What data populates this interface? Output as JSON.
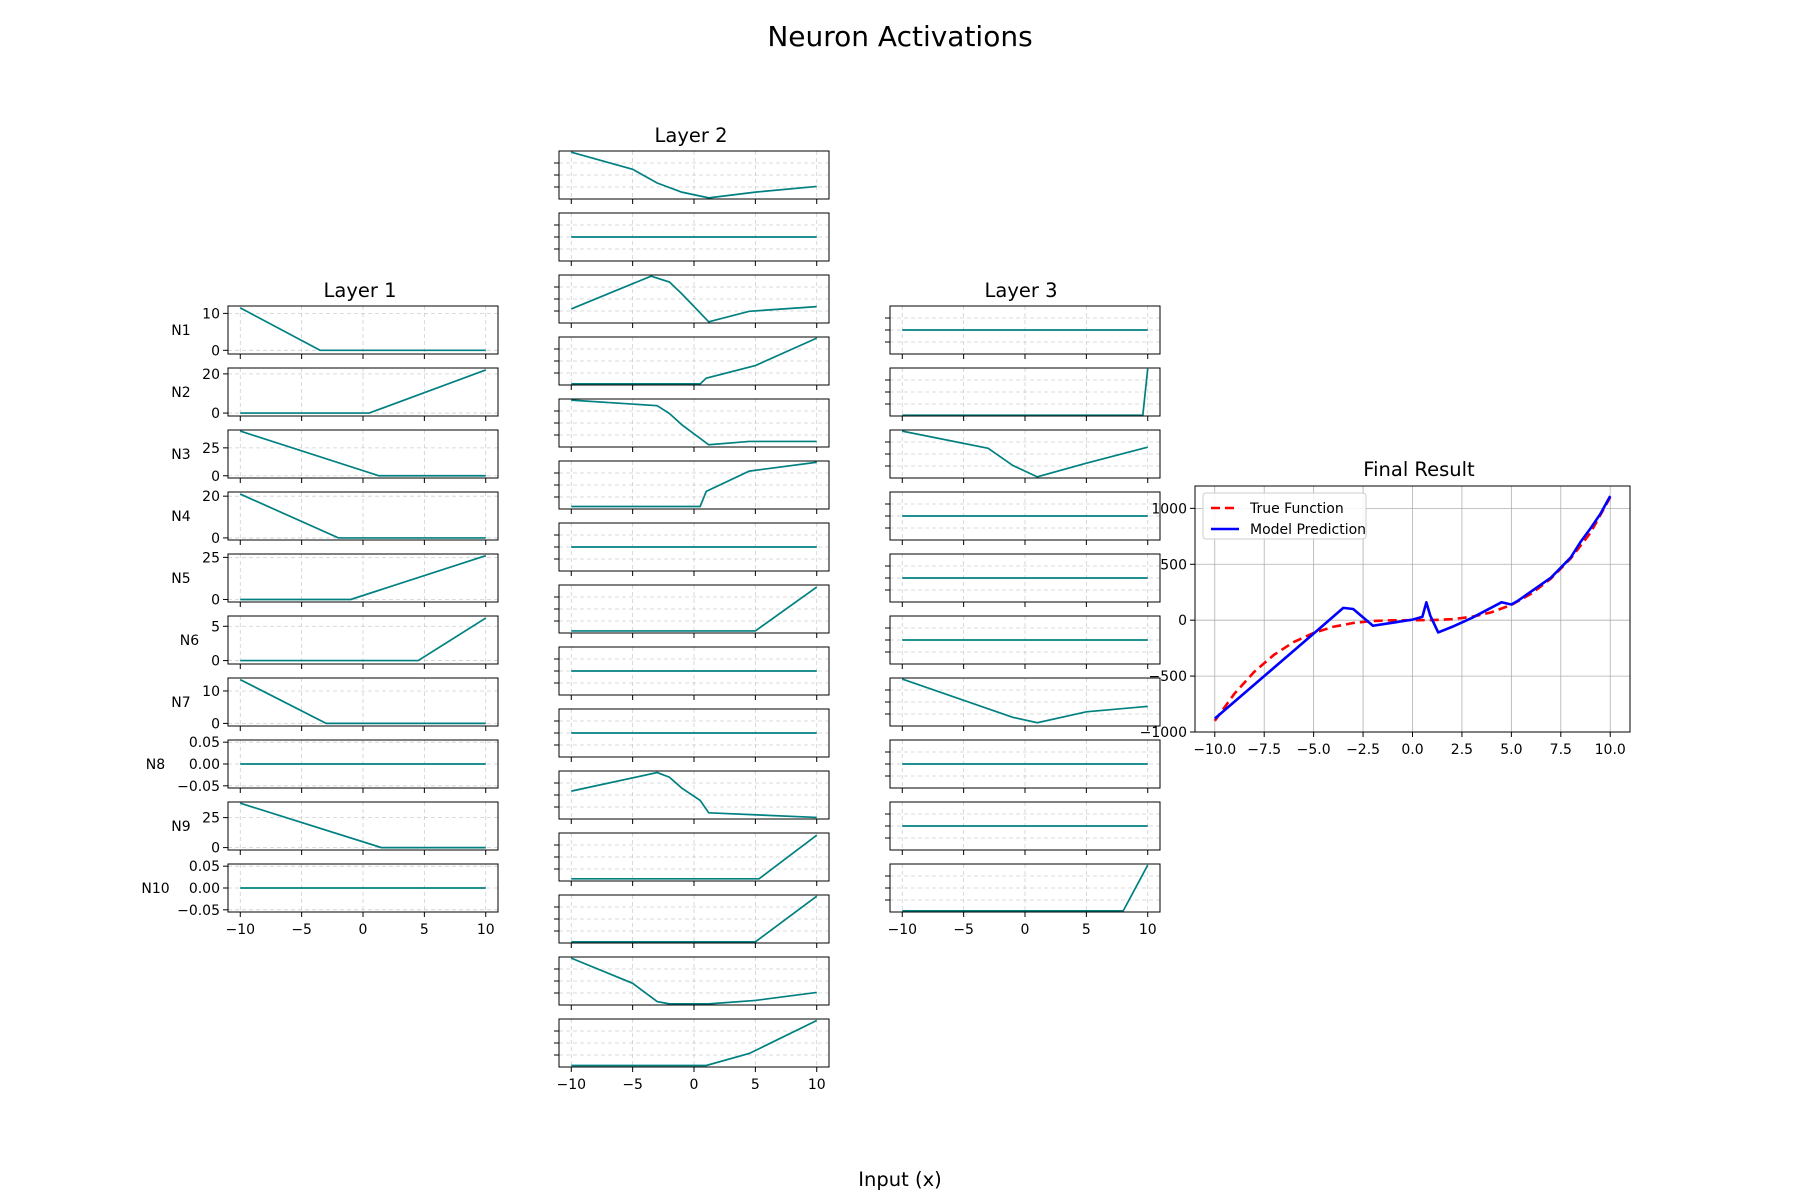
{
  "figure": {
    "title": "Neuron Activations",
    "xlabel": "Input (x)"
  },
  "colors": {
    "activation": "#008080",
    "true_function": "#ff0000",
    "model_prediction": "#0000ff",
    "grid": "#b0b0b0"
  },
  "chart_data": [
    {
      "type": "line",
      "title": "Layer 1",
      "grid": true,
      "xlim": [
        -11,
        11
      ],
      "x_ticks": [
        -10,
        -5,
        0,
        5,
        10
      ],
      "x_tick_labels": [
        "−10",
        "−5",
        "0",
        "5",
        "10"
      ],
      "series": [
        {
          "name": "N1",
          "points": [
            [
              -10,
              11.5
            ],
            [
              -3.5,
              0
            ],
            [
              10,
              0
            ]
          ],
          "ylim": [
            -1,
            12
          ],
          "y_ticks": [
            0,
            10
          ],
          "y_tick_labels": [
            "0",
            "10"
          ]
        },
        {
          "name": "N2",
          "points": [
            [
              -10,
              0
            ],
            [
              0.5,
              0
            ],
            [
              10,
              22
            ]
          ],
          "ylim": [
            -1.5,
            23
          ],
          "y_ticks": [
            0,
            20
          ],
          "y_tick_labels": [
            "0",
            "20"
          ]
        },
        {
          "name": "N3",
          "points": [
            [
              -10,
              40
            ],
            [
              1.3,
              0
            ],
            [
              10,
              0
            ]
          ],
          "ylim": [
            -2,
            41
          ],
          "y_ticks": [
            0,
            25
          ],
          "y_tick_labels": [
            "0",
            "25"
          ]
        },
        {
          "name": "N4",
          "points": [
            [
              -10,
              21
            ],
            [
              -2,
              0
            ],
            [
              10,
              0
            ]
          ],
          "ylim": [
            -1,
            22
          ],
          "y_ticks": [
            0,
            20
          ],
          "y_tick_labels": [
            "0",
            "20"
          ]
        },
        {
          "name": "N5",
          "points": [
            [
              -10,
              0
            ],
            [
              -1,
              0
            ],
            [
              10,
              26
            ]
          ],
          "ylim": [
            -1.5,
            27
          ],
          "y_ticks": [
            0,
            25
          ],
          "y_tick_labels": [
            "0",
            "25"
          ]
        },
        {
          "name": "N6",
          "points": [
            [
              -10,
              0
            ],
            [
              4.5,
              0
            ],
            [
              10,
              6.2
            ]
          ],
          "ylim": [
            -0.5,
            6.5
          ],
          "y_ticks": [
            0,
            5
          ],
          "y_tick_labels": [
            "0",
            "5"
          ]
        },
        {
          "name": "N7",
          "points": [
            [
              -10,
              13.5
            ],
            [
              -3,
              0
            ],
            [
              10,
              0
            ]
          ],
          "ylim": [
            -0.8,
            14
          ],
          "y_ticks": [
            0,
            10
          ],
          "y_tick_labels": [
            "0",
            "10"
          ]
        },
        {
          "name": "N8",
          "points": [
            [
              -10,
              0
            ],
            [
              10,
              0
            ]
          ],
          "ylim": [
            -0.055,
            0.055
          ],
          "y_ticks": [
            -0.05,
            0,
            0.05
          ],
          "y_tick_labels": [
            "−0.05",
            "0.00",
            "0.05"
          ]
        },
        {
          "name": "N9",
          "points": [
            [
              -10,
              37
            ],
            [
              1.5,
              0
            ],
            [
              10,
              0
            ]
          ],
          "ylim": [
            -2,
            38
          ],
          "y_ticks": [
            0,
            25
          ],
          "y_tick_labels": [
            "0",
            "25"
          ]
        },
        {
          "name": "N10",
          "points": [
            [
              -10,
              0
            ],
            [
              10,
              0
            ]
          ],
          "ylim": [
            -0.055,
            0.055
          ],
          "y_ticks": [
            -0.05,
            0,
            0.05
          ],
          "y_tick_labels": [
            "−0.05",
            "0.00",
            "0.05"
          ]
        }
      ]
    },
    {
      "type": "line",
      "title": "Layer 2",
      "grid": true,
      "xlim": [
        -11,
        11
      ],
      "x_ticks": [
        -10,
        -5,
        0,
        5,
        10
      ],
      "x_tick_labels": [
        "−10",
        "−5",
        "0",
        "5",
        "10"
      ],
      "series": [
        {
          "points": [
            [
              -10,
              4
            ],
            [
              -5,
              2.5
            ],
            [
              -3,
              1.3
            ],
            [
              -1,
              0.5
            ],
            [
              1.2,
              0
            ],
            [
              5,
              0.5
            ],
            [
              10,
              1
            ]
          ],
          "ylim": [
            -0.1,
            4.1
          ]
        },
        {
          "points": [
            [
              -10,
              1
            ],
            [
              10,
              1
            ]
          ],
          "ylim": [
            0,
            2
          ]
        },
        {
          "points": [
            [
              -10,
              1.2
            ],
            [
              -3.5,
              4
            ],
            [
              -2,
              3.5
            ],
            [
              -1,
              2.5
            ],
            [
              1.2,
              0.1
            ],
            [
              4.5,
              1
            ],
            [
              10,
              1.4
            ]
          ],
          "ylim": [
            0,
            4.1
          ]
        },
        {
          "points": [
            [
              -10,
              0
            ],
            [
              0.5,
              0
            ],
            [
              1,
              0.5
            ],
            [
              5,
              1.6
            ],
            [
              10,
              4
            ]
          ],
          "ylim": [
            -0.1,
            4.1
          ]
        },
        {
          "points": [
            [
              -10,
              4
            ],
            [
              -3,
              3.5
            ],
            [
              -2,
              2.8
            ],
            [
              -1,
              1.8
            ],
            [
              1.2,
              0
            ],
            [
              4.5,
              0.3
            ],
            [
              10,
              0.3
            ]
          ],
          "ylim": [
            -0.2,
            4.1
          ]
        },
        {
          "points": [
            [
              -10,
              0
            ],
            [
              0.5,
              0
            ],
            [
              1,
              1.2
            ],
            [
              4.5,
              2.8
            ],
            [
              10,
              3.5
            ]
          ],
          "ylim": [
            -0.2,
            3.6
          ]
        },
        {
          "points": [
            [
              -10,
              1
            ],
            [
              10,
              1
            ]
          ],
          "ylim": [
            0,
            2
          ]
        },
        {
          "points": [
            [
              -10,
              0
            ],
            [
              5,
              0
            ],
            [
              10,
              2.1
            ]
          ],
          "ylim": [
            -0.1,
            2.2
          ]
        },
        {
          "points": [
            [
              -10,
              1
            ],
            [
              10,
              1
            ]
          ],
          "ylim": [
            0,
            2
          ]
        },
        {
          "points": [
            [
              -10,
              1
            ],
            [
              10,
              1
            ]
          ],
          "ylim": [
            0,
            2
          ]
        },
        {
          "points": [
            [
              -10,
              1.8
            ],
            [
              -3,
              3
            ],
            [
              -2,
              2.7
            ],
            [
              -1,
              2
            ],
            [
              0.5,
              1.2
            ],
            [
              1.2,
              0.4
            ],
            [
              10,
              0.1
            ]
          ],
          "ylim": [
            0,
            3.1
          ]
        },
        {
          "points": [
            [
              -10,
              0
            ],
            [
              5.3,
              0
            ],
            [
              10,
              2
            ]
          ],
          "ylim": [
            -0.1,
            2.1
          ]
        },
        {
          "points": [
            [
              -10,
              0
            ],
            [
              5,
              0
            ],
            [
              10,
              4
            ]
          ],
          "ylim": [
            -0.1,
            4.1
          ]
        },
        {
          "points": [
            [
              -10,
              4
            ],
            [
              -5,
              1.8
            ],
            [
              -3,
              0.2
            ],
            [
              -2,
              0
            ],
            [
              1.2,
              0
            ],
            [
              5,
              0.3
            ],
            [
              10,
              1
            ]
          ],
          "ylim": [
            -0.1,
            4.1
          ]
        },
        {
          "points": [
            [
              -10,
              0
            ],
            [
              1,
              0
            ],
            [
              4.5,
              0.8
            ],
            [
              10,
              3
            ]
          ],
          "ylim": [
            -0.1,
            3.1
          ]
        }
      ]
    },
    {
      "type": "line",
      "title": "Layer 3",
      "grid": true,
      "xlim": [
        -11,
        11
      ],
      "x_ticks": [
        -10,
        -5,
        0,
        5,
        10
      ],
      "x_tick_labels": [
        "−10",
        "−5",
        "0",
        "5",
        "10"
      ],
      "series": [
        {
          "points": [
            [
              -10,
              1
            ],
            [
              10,
              1
            ]
          ],
          "ylim": [
            0,
            2
          ]
        },
        {
          "points": [
            [
              -10,
              0
            ],
            [
              9.6,
              0
            ],
            [
              10,
              6
            ]
          ],
          "ylim": [
            -0.1,
            6.1
          ]
        },
        {
          "points": [
            [
              -10,
              4
            ],
            [
              -3,
              2.5
            ],
            [
              -1,
              1
            ],
            [
              0,
              0.5
            ],
            [
              1,
              0
            ],
            [
              5,
              1.2
            ],
            [
              10,
              2.6
            ]
          ],
          "ylim": [
            -0.1,
            4.1
          ]
        },
        {
          "points": [
            [
              -10,
              1
            ],
            [
              10,
              1
            ]
          ],
          "ylim": [
            0,
            2
          ]
        },
        {
          "points": [
            [
              -10,
              1
            ],
            [
              10,
              1
            ]
          ],
          "ylim": [
            0,
            2
          ]
        },
        {
          "points": [
            [
              -10,
              1
            ],
            [
              10,
              1
            ]
          ],
          "ylim": [
            0,
            2
          ]
        },
        {
          "points": [
            [
              -10,
              4
            ],
            [
              -1,
              0.5
            ],
            [
              1,
              0
            ],
            [
              5,
              1
            ],
            [
              10,
              1.5
            ]
          ],
          "ylim": [
            -0.3,
            4.1
          ]
        },
        {
          "points": [
            [
              -10,
              1
            ],
            [
              10,
              1
            ]
          ],
          "ylim": [
            0,
            2
          ]
        },
        {
          "points": [
            [
              -10,
              1
            ],
            [
              10,
              1
            ]
          ],
          "ylim": [
            0,
            2
          ]
        },
        {
          "points": [
            [
              -10,
              0
            ],
            [
              8,
              0
            ],
            [
              10,
              4
            ]
          ],
          "ylim": [
            -0.1,
            4.1
          ]
        }
      ]
    },
    {
      "type": "line",
      "title": "Final Result",
      "grid": true,
      "legend": "top-left",
      "xlim": [
        -11,
        11
      ],
      "ylim": [
        -1000,
        1200
      ],
      "x_ticks": [
        -10,
        -7.5,
        -5,
        -2.5,
        0,
        2.5,
        5,
        7.5,
        10
      ],
      "x_tick_labels": [
        "−10.0",
        "−7.5",
        "−5.0",
        "−2.5",
        "0.0",
        "2.5",
        "5.0",
        "7.5",
        "10.0"
      ],
      "y_ticks": [
        -1000,
        -500,
        0,
        500,
        1000
      ],
      "y_tick_labels": [
        "−1000",
        "−500",
        "0",
        "500",
        "1000"
      ],
      "series": [
        {
          "name": "True Function",
          "style": "dashed",
          "points": [
            [
              -10,
              -900
            ],
            [
              -9,
              -656
            ],
            [
              -8,
              -461
            ],
            [
              -7,
              -309
            ],
            [
              -6,
              -195
            ],
            [
              -5,
              -114
            ],
            [
              -4,
              -59
            ],
            [
              -3,
              -25
            ],
            [
              -2,
              -7
            ],
            [
              -1,
              -1
            ],
            [
              0,
              0
            ],
            [
              1,
              1
            ],
            [
              2,
              9
            ],
            [
              3,
              30
            ],
            [
              4,
              71
            ],
            [
              5,
              137
            ],
            [
              6,
              236
            ],
            [
              7,
              372
            ],
            [
              8,
              552
            ],
            [
              9,
              781
            ],
            [
              10,
              1100
            ]
          ]
        },
        {
          "name": "Model Prediction",
          "style": "solid",
          "points": [
            [
              -10,
              -880
            ],
            [
              -5,
              -120
            ],
            [
              -3.5,
              110
            ],
            [
              -3,
              100
            ],
            [
              -2,
              -50
            ],
            [
              0,
              5
            ],
            [
              0.5,
              30
            ],
            [
              0.7,
              160
            ],
            [
              0.9,
              40
            ],
            [
              1.3,
              -110
            ],
            [
              2,
              -60
            ],
            [
              3,
              20
            ],
            [
              4.5,
              160
            ],
            [
              5,
              140
            ],
            [
              5.3,
              170
            ],
            [
              7,
              380
            ],
            [
              8,
              560
            ],
            [
              8.5,
              700
            ],
            [
              9,
              820
            ],
            [
              9.5,
              950
            ],
            [
              10,
              1110
            ]
          ]
        }
      ]
    }
  ]
}
